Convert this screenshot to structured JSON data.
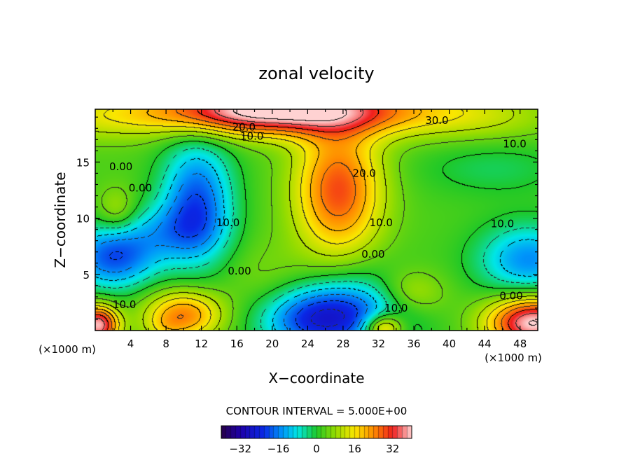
{
  "chart_data": {
    "type": "heatmap",
    "title": "zonal velocity",
    "xlabel": "X−coordinate",
    "ylabel": "Z−coordinate",
    "x_unit_left": "(×1000 m)",
    "x_unit_right": "(×1000 m)",
    "xlim": [
      0,
      50
    ],
    "ylim": [
      0,
      19.7
    ],
    "xticks": [
      4,
      8,
      12,
      16,
      20,
      24,
      28,
      32,
      36,
      40,
      44,
      48
    ],
    "xtick_labels": [
      "4",
      "8",
      "12",
      "16",
      "20",
      "24",
      "28",
      "32",
      "36",
      "40",
      "44",
      "48"
    ],
    "yticks": [
      5,
      10,
      15
    ],
    "ytick_labels": [
      "5",
      "10",
      "15"
    ],
    "contour_interval_text": "CONTOUR INTERVAL = 5.000E+00",
    "colorbar": {
      "range": [
        -40,
        40
      ],
      "ticks": [
        -32,
        -16,
        0,
        16,
        32
      ],
      "tick_labels": [
        "−32",
        "−16",
        "0",
        "16",
        "32"
      ]
    },
    "contour_labels": [
      {
        "text": "30.0",
        "x": 38.6,
        "y": 18.7
      },
      {
        "text": "20.0",
        "x": 16.8,
        "y": 18.1
      },
      {
        "text": "10.0",
        "x": 17.7,
        "y": 17.3
      },
      {
        "text": "10.0",
        "x": 47.4,
        "y": 16.6
      },
      {
        "text": "0.00",
        "x": 2.9,
        "y": 14.6
      },
      {
        "text": "0.00",
        "x": 5.1,
        "y": 12.7
      },
      {
        "text": "20.0",
        "x": 30.4,
        "y": 14.0
      },
      {
        "text": "10.0",
        "x": 15.0,
        "y": 9.6
      },
      {
        "text": "10.0",
        "x": 32.3,
        "y": 9.6
      },
      {
        "text": "10.0",
        "x": 46.0,
        "y": 9.5
      },
      {
        "text": "0.00",
        "x": 31.4,
        "y": 6.8
      },
      {
        "text": "0.00",
        "x": 16.3,
        "y": 5.3
      },
      {
        "text": "0.00",
        "x": 47.0,
        "y": 3.1
      },
      {
        "text": "10.0",
        "x": 34.0,
        "y": 2.0
      },
      {
        "text": "10.0",
        "x": 3.3,
        "y": 2.3
      }
    ],
    "field_features": [
      {
        "kind": "max",
        "x": 24,
        "y": 19.6,
        "sx": 10,
        "sy": 1.6,
        "value": 32
      },
      {
        "kind": "max",
        "x": 15,
        "y": 19.5,
        "sx": 7,
        "sy": 1.3,
        "value": 15
      },
      {
        "kind": "max",
        "x": 0,
        "y": 19.0,
        "sx": 6,
        "sy": 1.5,
        "value": 8
      },
      {
        "kind": "max",
        "x": 44,
        "y": 19.0,
        "sx": 6,
        "sy": 1.6,
        "value": 6
      },
      {
        "kind": "max",
        "x": 27.5,
        "y": 12.5,
        "sx": 3.4,
        "sy": 4.0,
        "value": 26
      },
      {
        "kind": "min",
        "x": 11.5,
        "y": 11.5,
        "sx": 2.8,
        "sy": 3.8,
        "value": -22
      },
      {
        "kind": "min",
        "x": 2.0,
        "y": 6.5,
        "sx": 3.5,
        "sy": 2.0,
        "value": -22
      },
      {
        "kind": "min",
        "x": 8.0,
        "y": 8.8,
        "sx": 4.0,
        "sy": 1.8,
        "value": -10
      },
      {
        "kind": "min",
        "x": 24.5,
        "y": 1.0,
        "sx": 4.5,
        "sy": 2.0,
        "value": -24
      },
      {
        "kind": "min",
        "x": 30.5,
        "y": 1.8,
        "sx": 4.5,
        "sy": 2.5,
        "value": -14
      },
      {
        "kind": "min",
        "x": 49.0,
        "y": 6.3,
        "sx": 4.0,
        "sy": 2.2,
        "value": -18
      },
      {
        "kind": "max",
        "x": 10.0,
        "y": 1.4,
        "sx": 3.0,
        "sy": 1.5,
        "value": 22
      },
      {
        "kind": "max",
        "x": 35.5,
        "y": 3.3,
        "sx": 2.8,
        "sy": 1.5,
        "value": 10
      },
      {
        "kind": "max",
        "x": 0.3,
        "y": 0.5,
        "sx": 1.6,
        "sy": 1.2,
        "value": 36
      },
      {
        "kind": "max",
        "x": 49.5,
        "y": 0.7,
        "sx": 3.5,
        "sy": 1.6,
        "value": 38
      },
      {
        "kind": "max",
        "x": 32.5,
        "y": 0.2,
        "sx": 1.6,
        "sy": 0.9,
        "value": 24
      },
      {
        "kind": "max",
        "x": 8.0,
        "y": 0.2,
        "sx": 1.5,
        "sy": 0.8,
        "value": 4
      },
      {
        "kind": "max",
        "x": 2.5,
        "y": 10.5,
        "sx": 1.6,
        "sy": 1.5,
        "value": 8
      },
      {
        "kind": "max",
        "x": 19.5,
        "y": 3.5,
        "sx": 3.5,
        "sy": 3.0,
        "value": 4
      },
      {
        "kind": "min",
        "x": 45.0,
        "y": 14.5,
        "sx": 6.0,
        "sy": 1.8,
        "value": -5
      }
    ]
  }
}
